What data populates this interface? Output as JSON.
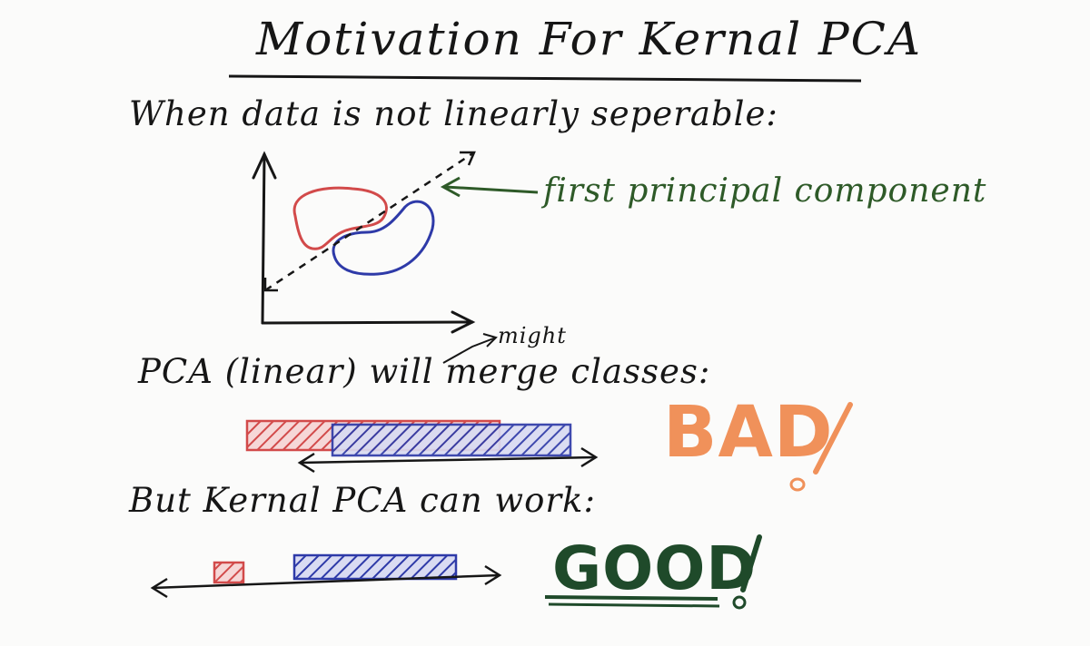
{
  "title": "Motivation For Kernal PCA",
  "heading1": "When data is not linearly seperable:",
  "first_pc_label": "first principal component",
  "heading2": "PCA (linear) will merge classes:",
  "might_label": "might",
  "bad_label": "BAD!",
  "heading3": "But Kernal PCA can work:",
  "good_label": "GOOD!",
  "colors": {
    "ink": "#161616",
    "red_class": "#d24a4a",
    "blue_class": "#2e3aa8",
    "green_ink": "#2e5a28",
    "bad": "#f0915a",
    "good": "#1f4a2a"
  }
}
